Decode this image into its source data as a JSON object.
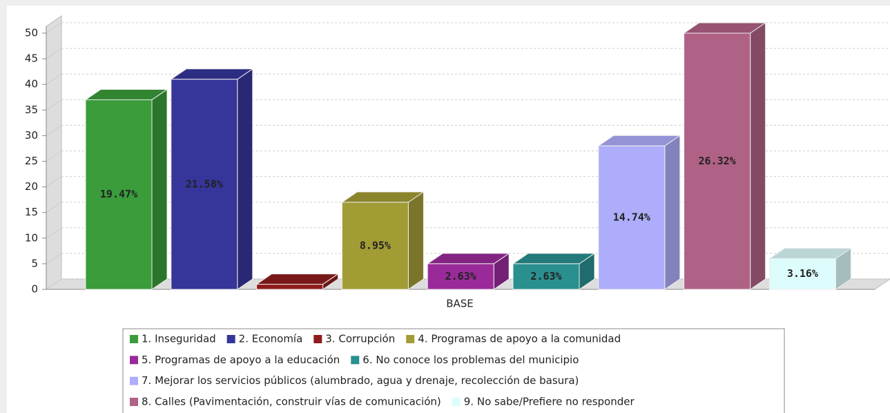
{
  "chart_data": {
    "type": "bar3d",
    "categories": [
      "BASE"
    ],
    "ylim": [
      0,
      50
    ],
    "yticks": [
      0,
      5,
      10,
      15,
      20,
      25,
      30,
      35,
      40,
      45,
      50
    ],
    "grid": true,
    "legend": "bottom",
    "series": [
      {
        "name": "1. Inseguridad",
        "color": "#3a9c3a",
        "values": [
          37
        ],
        "data_labels": [
          "19.47%"
        ]
      },
      {
        "name": "2. Economía",
        "color": "#35359a",
        "values": [
          41
        ],
        "data_labels": [
          "21.58%"
        ]
      },
      {
        "name": "3. Corrupción",
        "color": "#8e1c1c",
        "values": [
          1
        ],
        "data_labels": [
          null
        ]
      },
      {
        "name": "4. Programas de apoyo a la comunidad",
        "color": "#a29c35",
        "values": [
          17
        ],
        "data_labels": [
          "8.95%"
        ]
      },
      {
        "name": "5. Programas de apoyo a la educación",
        "color": "#9a2a9a",
        "values": [
          5
        ],
        "data_labels": [
          "2.63%"
        ]
      },
      {
        "name": "6. No conoce los problemas del municipio",
        "color": "#2a8f8f",
        "values": [
          5
        ],
        "data_labels": [
          "2.63%"
        ]
      },
      {
        "name": "7. Mejorar los servicios públicos (alumbrado, agua y drenaje, recolección de basura)",
        "color": "#adadfb",
        "values": [
          28
        ],
        "data_labels": [
          "14.74%"
        ]
      },
      {
        "name": "8. Calles (Pavimentación, construir vías de comunicación)",
        "color": "#b06286",
        "values": [
          50
        ],
        "data_labels": [
          "26.32%"
        ]
      },
      {
        "name": "9. No sabe/Prefiere no responder",
        "color": "#ddfcfc",
        "values": [
          6
        ],
        "data_labels": [
          "3.16%"
        ]
      }
    ]
  }
}
